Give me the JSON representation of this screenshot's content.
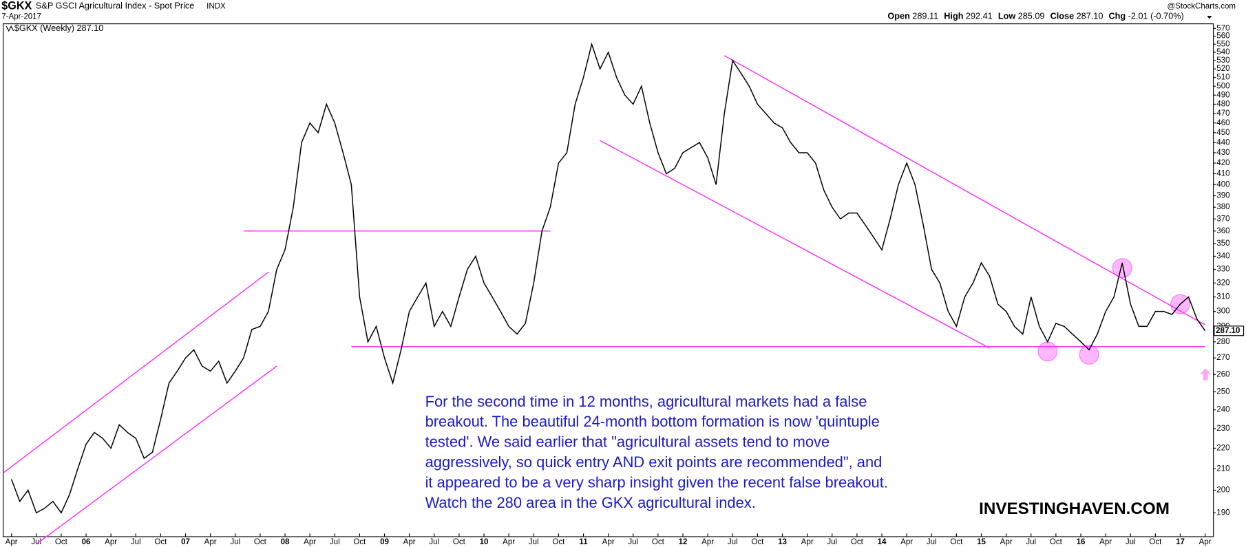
{
  "chart_data": {
    "type": "line",
    "symbol": "$GKX",
    "title": "S&P GSCI Agricultural Index - Spot Price",
    "exchange": "INDX",
    "date": "7-Apr-2017",
    "credit": "@StockCharts.com",
    "quote": [
      {
        "label": "Open",
        "value": "289.11"
      },
      {
        "label": "High",
        "value": "292.41"
      },
      {
        "label": "Low",
        "value": "285.09"
      },
      {
        "label": "Close",
        "value": "287.10"
      },
      {
        "label": "Chg",
        "value": "-2.01 (-0.70%)"
      }
    ],
    "legend": "$GKX (Weekly) 287.10",
    "last_price": {
      "value": 287.1,
      "label": "287.10"
    },
    "annotation": [
      "For the second time in 12 months, agricultural markets had a false",
      "breakout. The beautiful 24-month bottom formation is now 'quintuple",
      "tested'. We said earlier that \"agricultural assets tend to move",
      "aggressively, so quick entry AND exit points are recommended\", and",
      "it appeared to be a very sharp insight given the recent false breakout.",
      "Watch the 280 area in the GKX agricultural index."
    ],
    "watermark": "INVESTINGHAVEN.COM",
    "log_scale": true,
    "grid": false,
    "xlim": [
      "2005-03",
      "2017-05"
    ],
    "ylim": [
      180,
      576
    ],
    "yticks": [
      190,
      200,
      210,
      220,
      230,
      240,
      250,
      260,
      270,
      280,
      290,
      300,
      310,
      320,
      330,
      340,
      350,
      360,
      370,
      380,
      390,
      400,
      410,
      420,
      430,
      440,
      450,
      460,
      470,
      480,
      490,
      500,
      510,
      520,
      530,
      540,
      550,
      560,
      570
    ],
    "xticks": [
      {
        "value": "2005-04",
        "label": "Apr"
      },
      {
        "value": "2005-07",
        "label": "Jul"
      },
      {
        "value": "2005-10",
        "label": "Oct"
      },
      {
        "value": "2006-01",
        "label": "06"
      },
      {
        "value": "2006-04",
        "label": "Apr"
      },
      {
        "value": "2006-07",
        "label": "Jul"
      },
      {
        "value": "2006-10",
        "label": "Oct"
      },
      {
        "value": "2007-01",
        "label": "07"
      },
      {
        "value": "2007-04",
        "label": "Apr"
      },
      {
        "value": "2007-07",
        "label": "Jul"
      },
      {
        "value": "2007-10",
        "label": "Oct"
      },
      {
        "value": "2008-01",
        "label": "08"
      },
      {
        "value": "2008-04",
        "label": "Apr"
      },
      {
        "value": "2008-07",
        "label": "Jul"
      },
      {
        "value": "2008-10",
        "label": "Oct"
      },
      {
        "value": "2009-01",
        "label": "09"
      },
      {
        "value": "2009-04",
        "label": "Apr"
      },
      {
        "value": "2009-07",
        "label": "Jul"
      },
      {
        "value": "2009-10",
        "label": "Oct"
      },
      {
        "value": "2010-01",
        "label": "10"
      },
      {
        "value": "2010-04",
        "label": "Apr"
      },
      {
        "value": "2010-07",
        "label": "Jul"
      },
      {
        "value": "2010-10",
        "label": "Oct"
      },
      {
        "value": "2011-01",
        "label": "11"
      },
      {
        "value": "2011-04",
        "label": "Apr"
      },
      {
        "value": "2011-07",
        "label": "Jul"
      },
      {
        "value": "2011-10",
        "label": "Oct"
      },
      {
        "value": "2012-01",
        "label": "12"
      },
      {
        "value": "2012-04",
        "label": "Apr"
      },
      {
        "value": "2012-07",
        "label": "Jul"
      },
      {
        "value": "2012-10",
        "label": "Oct"
      },
      {
        "value": "2013-01",
        "label": "13"
      },
      {
        "value": "2013-04",
        "label": "Apr"
      },
      {
        "value": "2013-07",
        "label": "Jul"
      },
      {
        "value": "2013-10",
        "label": "Oct"
      },
      {
        "value": "2014-01",
        "label": "14"
      },
      {
        "value": "2014-04",
        "label": "Apr"
      },
      {
        "value": "2014-07",
        "label": "Jul"
      },
      {
        "value": "2014-10",
        "label": "Oct"
      },
      {
        "value": "2015-01",
        "label": "15"
      },
      {
        "value": "2015-04",
        "label": "Apr"
      },
      {
        "value": "2015-07",
        "label": "Jul"
      },
      {
        "value": "2015-10",
        "label": "Oct"
      },
      {
        "value": "2016-01",
        "label": "16"
      },
      {
        "value": "2016-04",
        "label": "Apr"
      },
      {
        "value": "2016-07",
        "label": "Jul"
      },
      {
        "value": "2016-10",
        "label": "Oct"
      },
      {
        "value": "2017-01",
        "label": "17"
      },
      {
        "value": "2017-04",
        "label": "Apr"
      }
    ],
    "x": [
      "2005-04",
      "2005-05",
      "2005-06",
      "2005-07",
      "2005-08",
      "2005-09",
      "2005-10",
      "2005-11",
      "2005-12",
      "2006-01",
      "2006-02",
      "2006-03",
      "2006-04",
      "2006-05",
      "2006-06",
      "2006-07",
      "2006-08",
      "2006-09",
      "2006-10",
      "2006-11",
      "2006-12",
      "2007-01",
      "2007-02",
      "2007-03",
      "2007-04",
      "2007-05",
      "2007-06",
      "2007-07",
      "2007-08",
      "2007-09",
      "2007-10",
      "2007-11",
      "2007-12",
      "2008-01",
      "2008-02",
      "2008-03",
      "2008-04",
      "2008-05",
      "2008-06",
      "2008-07",
      "2008-08",
      "2008-09",
      "2008-10",
      "2008-11",
      "2008-12",
      "2009-01",
      "2009-02",
      "2009-03",
      "2009-04",
      "2009-05",
      "2009-06",
      "2009-07",
      "2009-08",
      "2009-09",
      "2009-10",
      "2009-11",
      "2009-12",
      "2010-01",
      "2010-02",
      "2010-03",
      "2010-04",
      "2010-05",
      "2010-06",
      "2010-07",
      "2010-08",
      "2010-09",
      "2010-10",
      "2010-11",
      "2010-12",
      "2011-01",
      "2011-02",
      "2011-03",
      "2011-04",
      "2011-05",
      "2011-06",
      "2011-07",
      "2011-08",
      "2011-09",
      "2011-10",
      "2011-11",
      "2011-12",
      "2012-01",
      "2012-02",
      "2012-03",
      "2012-04",
      "2012-05",
      "2012-06",
      "2012-07",
      "2012-08",
      "2012-09",
      "2012-10",
      "2012-11",
      "2012-12",
      "2013-01",
      "2013-02",
      "2013-03",
      "2013-04",
      "2013-05",
      "2013-06",
      "2013-07",
      "2013-08",
      "2013-09",
      "2013-10",
      "2013-11",
      "2013-12",
      "2014-01",
      "2014-02",
      "2014-03",
      "2014-04",
      "2014-05",
      "2014-06",
      "2014-07",
      "2014-08",
      "2014-09",
      "2014-10",
      "2014-11",
      "2014-12",
      "2015-01",
      "2015-02",
      "2015-03",
      "2015-04",
      "2015-05",
      "2015-06",
      "2015-07",
      "2015-08",
      "2015-09",
      "2015-10",
      "2015-11",
      "2015-12",
      "2016-01",
      "2016-02",
      "2016-03",
      "2016-04",
      "2016-05",
      "2016-06",
      "2016-07",
      "2016-08",
      "2016-09",
      "2016-10",
      "2016-11",
      "2016-12",
      "2017-01",
      "2017-02",
      "2017-03",
      "2017-04"
    ],
    "series": [
      {
        "name": "$GKX",
        "color": "#000000",
        "values": [
          205,
          195,
          200,
          190,
          192,
          195,
          190,
          198,
          210,
          222,
          228,
          225,
          220,
          232,
          228,
          225,
          215,
          218,
          235,
          255,
          262,
          270,
          275,
          265,
          262,
          268,
          255,
          262,
          270,
          288,
          290,
          300,
          330,
          345,
          380,
          440,
          460,
          450,
          480,
          460,
          430,
          400,
          310,
          280,
          290,
          270,
          255,
          275,
          300,
          310,
          320,
          290,
          300,
          290,
          310,
          330,
          340,
          320,
          310,
          300,
          290,
          285,
          292,
          320,
          360,
          380,
          420,
          430,
          480,
          510,
          550,
          520,
          540,
          510,
          490,
          480,
          500,
          460,
          430,
          410,
          415,
          430,
          435,
          440,
          425,
          400,
          470,
          530,
          515,
          500,
          480,
          470,
          460,
          455,
          440,
          430,
          430,
          420,
          395,
          380,
          370,
          375,
          375,
          365,
          355,
          345,
          370,
          400,
          420,
          400,
          365,
          330,
          320,
          300,
          290,
          310,
          320,
          335,
          325,
          305,
          300,
          290,
          285,
          310,
          290,
          280,
          292,
          290,
          285,
          280,
          275,
          285,
          300,
          310,
          335,
          305,
          290,
          290,
          300,
          300,
          298,
          305,
          310,
          295,
          287.1
        ]
      }
    ],
    "trendlines": [
      {
        "x": [
          "2005-03",
          "2007-11"
        ],
        "y": [
          208,
          328
        ]
      },
      {
        "x": [
          "2005-07",
          "2007-12"
        ],
        "y": [
          177,
          265
        ]
      },
      {
        "x": [
          "2007-08",
          "2010-09"
        ],
        "y": [
          360,
          360
        ]
      },
      {
        "x": [
          "2008-09",
          "2017-04"
        ],
        "y": [
          277,
          277
        ]
      },
      {
        "x": [
          "2011-03",
          "2015-02"
        ],
        "y": [
          442,
          276
        ]
      },
      {
        "x": [
          "2012-06",
          "2017-04"
        ],
        "y": [
          536,
          291
        ]
      }
    ],
    "trendline_color": "#ff33ff",
    "highlights": [
      {
        "x": "2015-09",
        "y": 274
      },
      {
        "x": "2016-02",
        "y": 272
      },
      {
        "x": "2016-06",
        "y": 331
      },
      {
        "x": "2017-01",
        "y": 305
      }
    ]
  }
}
